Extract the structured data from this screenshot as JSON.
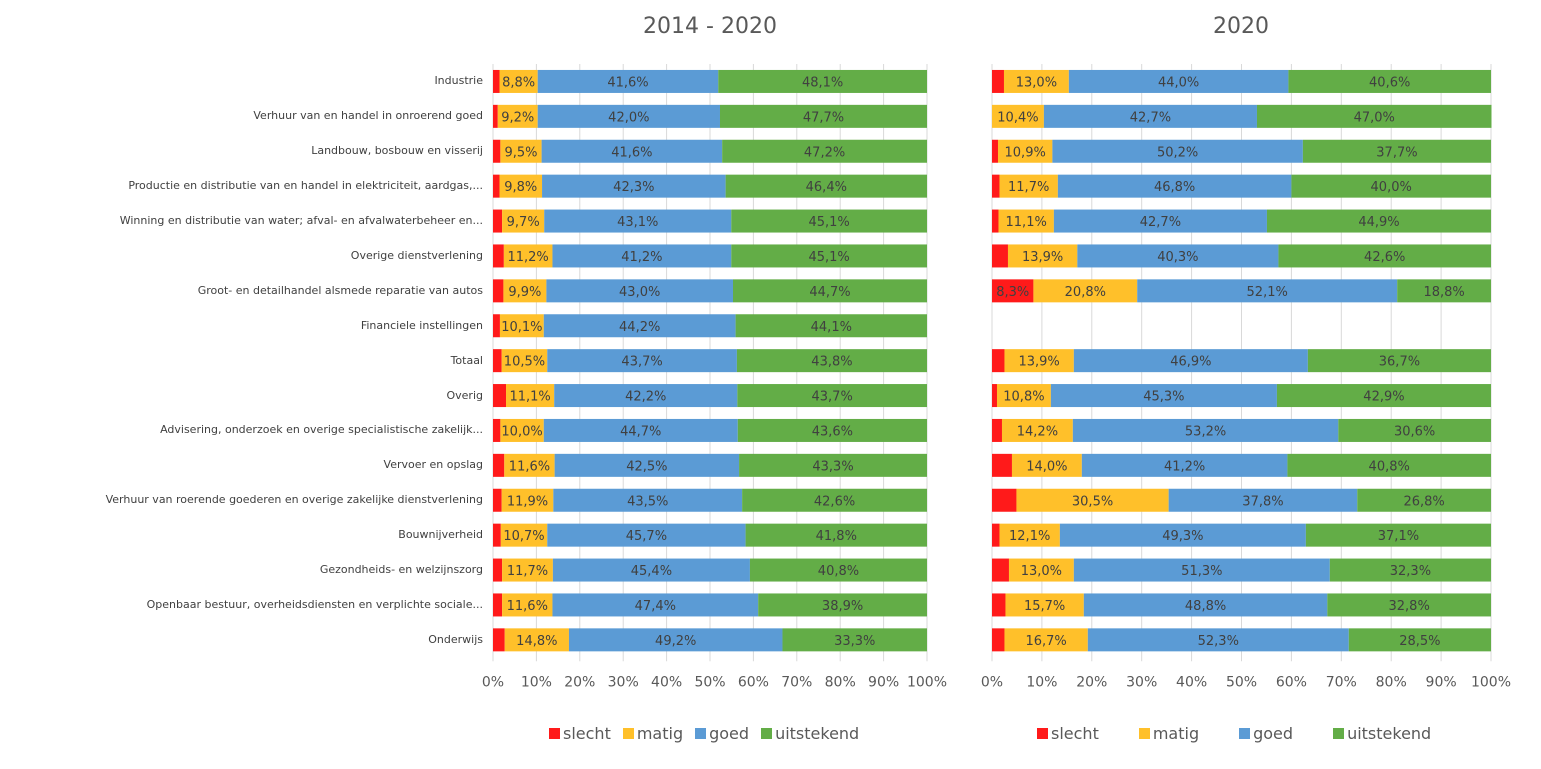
{
  "chart_data": [
    {
      "type": "bar",
      "orientation": "horizontal",
      "stacked": "percent",
      "title": "2014 - 2020",
      "xlabel": "",
      "ylabel": "",
      "xlim": [
        0,
        100
      ],
      "x_ticks": [
        "0%",
        "10%",
        "20%",
        "30%",
        "40%",
        "50%",
        "60%",
        "70%",
        "80%",
        "90%",
        "100%"
      ],
      "grid": "vertical",
      "legend_position": "bottom",
      "categories": [
        "Industrie",
        "Verhuur van en handel in onroerend goed",
        "Landbouw, bosbouw en visserij",
        "Productie en distributie van en handel in elektriciteit, aardgas,...",
        "Winning en distributie van water; afval- en afvalwaterbeheer en...",
        "Overige dienstverlening",
        "Groot- en detailhandel alsmede reparatie van autos",
        "Financiele instellingen",
        "Totaal",
        "Overig",
        "Advisering, onderzoek en overige specialistische zakelijk...",
        "Vervoer en opslag",
        "Verhuur van roerende goederen en overige zakelijke dienstverlening",
        "Bouwnijverheid",
        "Gezondheids- en welzijnszorg",
        "Openbaar bestuur, overheidsdiensten en verplichte sociale...",
        "Onderwijs"
      ],
      "series": [
        {
          "name": "slecht",
          "color": "#FF1A1A",
          "values": [
            1.5,
            1.1,
            1.7,
            1.5,
            2.1,
            2.5,
            2.4,
            1.6,
            2.0,
            3.0,
            1.7,
            2.6,
            2.0,
            1.8,
            2.1,
            2.1,
            2.7
          ],
          "labeled": false
        },
        {
          "name": "matig",
          "color": "#FFC02A",
          "values": [
            8.8,
            9.2,
            9.5,
            9.8,
            9.7,
            11.2,
            9.9,
            10.1,
            10.5,
            11.1,
            10.0,
            11.6,
            11.9,
            10.7,
            11.7,
            11.6,
            14.8
          ],
          "labeled": true
        },
        {
          "name": "goed",
          "color": "#5B9BD5",
          "values": [
            41.6,
            42.0,
            41.6,
            42.3,
            43.1,
            41.2,
            43.0,
            44.2,
            43.7,
            42.2,
            44.7,
            42.5,
            43.5,
            45.7,
            45.4,
            47.4,
            49.2
          ],
          "labeled": true
        },
        {
          "name": "uitstekend",
          "color": "#63AD47",
          "values": [
            48.1,
            47.7,
            47.2,
            46.4,
            45.1,
            45.1,
            44.7,
            44.1,
            43.8,
            43.7,
            43.6,
            43.3,
            42.6,
            41.8,
            40.8,
            38.9,
            33.3
          ],
          "labeled": true
        }
      ]
    },
    {
      "type": "bar",
      "orientation": "horizontal",
      "stacked": "percent",
      "title": "2020",
      "xlabel": "",
      "ylabel": "",
      "xlim": [
        0,
        100
      ],
      "x_ticks": [
        "0%",
        "10%",
        "20%",
        "30%",
        "40%",
        "50%",
        "60%",
        "70%",
        "80%",
        "90%",
        "100%"
      ],
      "grid": "vertical",
      "legend_position": "bottom",
      "categories": [
        "Industrie",
        "Verhuur van en handel in onroerend goed",
        "Landbouw, bosbouw en visserij",
        "Productie en distributie van en handel in elektriciteit, aardgas,...",
        "Winning en distributie van water; afval- en afvalwaterbeheer en...",
        "Overige dienstverlening",
        "Groot- en detailhandel alsmede reparatie van autos",
        "Financiele instellingen",
        "Totaal",
        "Overig",
        "Advisering, onderzoek en overige specialistische zakelijk...",
        "Vervoer en opslag",
        "Verhuur van roerende goederen en overige zakelijke dienstverlening",
        "Bouwnijverheid",
        "Gezondheids- en welzijnszorg",
        "Openbaar bestuur, overheidsdiensten en verplichte sociale...",
        "Onderwijs"
      ],
      "series": [
        {
          "name": "slecht",
          "color": "#FF1A1A",
          "values": [
            2.4,
            0,
            1.2,
            1.5,
            1.3,
            3.2,
            8.3,
            null,
            2.5,
            1.0,
            2.0,
            4.0,
            4.9,
            1.5,
            3.4,
            2.7,
            2.5
          ],
          "labeled_values": [
            null,
            null,
            null,
            null,
            null,
            null,
            "8,3%",
            null,
            null,
            null,
            null,
            null,
            null,
            null,
            null,
            null,
            null
          ]
        },
        {
          "name": "matig",
          "color": "#FFC02A",
          "values": [
            13.0,
            10.4,
            10.9,
            11.7,
            11.1,
            13.9,
            20.8,
            null,
            13.9,
            10.8,
            14.2,
            14.0,
            30.5,
            12.1,
            13.0,
            15.7,
            16.7
          ],
          "labeled": true
        },
        {
          "name": "goed",
          "color": "#5B9BD5",
          "values": [
            44.0,
            42.7,
            50.2,
            46.8,
            42.7,
            40.3,
            52.1,
            null,
            46.9,
            45.3,
            53.2,
            41.2,
            37.8,
            49.3,
            51.3,
            48.8,
            52.3
          ],
          "labeled": true
        },
        {
          "name": "uitstekend",
          "color": "#63AD47",
          "values": [
            40.6,
            47.0,
            37.7,
            40.0,
            44.9,
            42.6,
            18.8,
            null,
            36.7,
            42.9,
            30.6,
            40.8,
            26.8,
            37.1,
            32.3,
            32.8,
            28.5
          ],
          "labeled": true
        }
      ]
    }
  ],
  "legend": {
    "items": [
      {
        "label": "slecht",
        "color": "#FF1A1A"
      },
      {
        "label": "matig",
        "color": "#FFC02A"
      },
      {
        "label": "goed",
        "color": "#5B9BD5"
      },
      {
        "label": "uitstekend",
        "color": "#63AD47"
      }
    ]
  }
}
